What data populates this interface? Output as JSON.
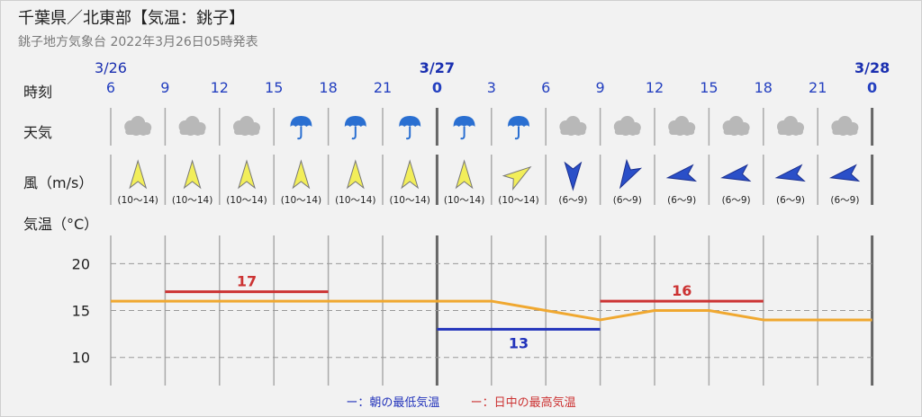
{
  "header": {
    "title": "千葉県／北東部【気温：銚子】",
    "subtitle": "銚子地方気象台 2022年3月26日05時発表"
  },
  "row_labels": {
    "time": "時刻",
    "weather": "天気",
    "wind": "風（m/s）",
    "temp": "気温（°C）"
  },
  "dates": [
    {
      "label": "3/26",
      "at_index": 0
    },
    {
      "label": "3/27",
      "at_index": 6
    },
    {
      "label": "3/28",
      "at_index": 14
    }
  ],
  "hours": [
    "6",
    "9",
    "12",
    "15",
    "18",
    "21",
    "0",
    "3",
    "6",
    "9",
    "12",
    "15",
    "18",
    "21",
    "0"
  ],
  "day_boundary_indices": [
    6,
    14
  ],
  "weather": [
    "cloudy",
    "cloudy",
    "cloudy",
    "rain",
    "rain",
    "rain",
    "rain",
    "rain",
    "cloudy",
    "cloudy",
    "cloudy",
    "cloudy",
    "cloudy",
    "cloudy"
  ],
  "wind": [
    {
      "dir": "S",
      "speed": "(10～14)"
    },
    {
      "dir": "S",
      "speed": "(10～14)"
    },
    {
      "dir": "S",
      "speed": "(10～14)"
    },
    {
      "dir": "S",
      "speed": "(10～14)"
    },
    {
      "dir": "S",
      "speed": "(10～14)"
    },
    {
      "dir": "S",
      "speed": "(10～14)"
    },
    {
      "dir": "S",
      "speed": "(10～14)"
    },
    {
      "dir": "SW",
      "speed": "(10～14)"
    },
    {
      "dir": "N",
      "speed": "(6～9)"
    },
    {
      "dir": "NE",
      "speed": "(6～9)"
    },
    {
      "dir": "E",
      "speed": "(6～9)"
    },
    {
      "dir": "E",
      "speed": "(6～9)"
    },
    {
      "dir": "E",
      "speed": "(6～9)"
    },
    {
      "dir": "E",
      "speed": "(6～9)"
    }
  ],
  "colors": {
    "temp_line": "#f0a830",
    "min_line": "#2233bb",
    "max_line": "#cc3333",
    "date_blue": "#1a2fb0",
    "hour_blue": "#2440c0",
    "umbrella": "#2a6fd1",
    "cloud": "#b8b8b8",
    "arrow_fill": "#f2ee5a",
    "north_arrow": "#2a4fc8"
  },
  "chart_data": {
    "type": "line",
    "xlabel": "",
    "ylabel": "気温（°C）",
    "ylim": [
      7,
      23
    ],
    "yticks": [
      10,
      15,
      20
    ],
    "grid": true,
    "x": [
      "3/26 6",
      "9",
      "12",
      "15",
      "18",
      "21",
      "3/27 0",
      "3",
      "6",
      "9",
      "12",
      "15",
      "18",
      "21",
      "3/28 0"
    ],
    "series": [
      {
        "values": [
          16,
          16,
          16,
          16,
          16,
          16,
          16,
          16,
          15,
          14,
          15,
          15,
          14,
          14,
          14
        ]
      }
    ],
    "min_temp": {
      "value": 13,
      "label": "13",
      "from_index": 6,
      "to_index": 9
    },
    "max_temps": [
      {
        "value": 17,
        "label": "17",
        "from_index": 1,
        "to_index": 4
      },
      {
        "value": 16,
        "label": "16",
        "from_index": 9,
        "to_index": 12
      }
    ]
  },
  "legend": {
    "min": "ー：朝の最低気温",
    "max": "ー：日中の最高気温"
  }
}
